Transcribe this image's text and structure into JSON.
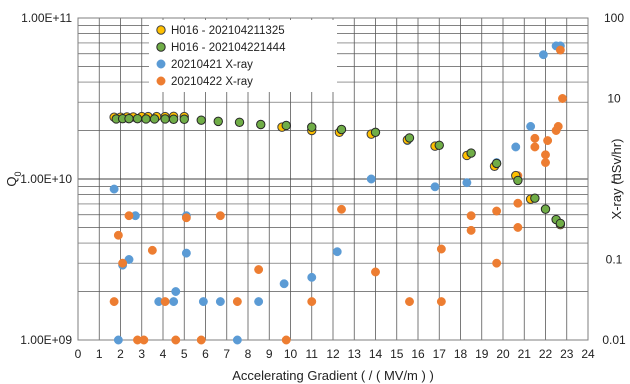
{
  "chart_data": {
    "type": "scatter",
    "xlabel": "Accelerating Gradient ( / ( MV/m ) )",
    "ylabel_left": "Q0",
    "ylabel_right": "X-ray (uSv/hr)",
    "x_range": [
      0,
      24
    ],
    "x_ticks": [
      "0",
      "1",
      "2",
      "3",
      "4",
      "5",
      "6",
      "7",
      "8",
      "9",
      "10",
      "11",
      "12",
      "13",
      "14",
      "15",
      "16",
      "17",
      "18",
      "19",
      "20",
      "21",
      "22",
      "23",
      "24"
    ],
    "y_left_range": [
      1000000000.0,
      100000000000.0
    ],
    "y_left_scale": "log",
    "y_left_ticks": [
      {
        "value": 1000000000.0,
        "label": "1.00E+09"
      },
      {
        "value": 10000000000.0,
        "label": "1.00E+10"
      },
      {
        "value": 100000000000.0,
        "label": "1.00E+11"
      }
    ],
    "y_right_range": [
      0.01,
      100
    ],
    "y_right_scale": "log",
    "y_right_ticks": [
      {
        "value": 0.01,
        "label": "0.01"
      },
      {
        "value": 0.1,
        "label": "0.1"
      },
      {
        "value": 1,
        "label": "1"
      },
      {
        "value": 10,
        "label": "10"
      },
      {
        "value": 100,
        "label": "100"
      }
    ],
    "grid": true,
    "legend_position": "top-left",
    "series": [
      {
        "name": "H016 - 202104211325",
        "axis": "left",
        "color": "#ffc000",
        "outline": "#404040",
        "points": [
          [
            1.7,
            24200000000.0
          ],
          [
            2.0,
            24200000000.0
          ],
          [
            2.3,
            24300000000.0
          ],
          [
            2.6,
            24300000000.0
          ],
          [
            3.0,
            24400000000.0
          ],
          [
            3.3,
            24400000000.0
          ],
          [
            3.7,
            24400000000.0
          ],
          [
            4.1,
            24400000000.0
          ],
          [
            4.5,
            24500000000.0
          ],
          [
            5.0,
            24400000000.0
          ],
          [
            9.6,
            21000000000.0
          ],
          [
            11.0,
            20000000000.0
          ],
          [
            12.3,
            19500000000.0
          ],
          [
            13.8,
            19000000000.0
          ],
          [
            15.5,
            17500000000.0
          ],
          [
            16.8,
            16000000000.0
          ],
          [
            18.3,
            14000000000.0
          ],
          [
            19.6,
            12000000000.0
          ],
          [
            20.6,
            10500000000.0
          ],
          [
            21.3,
            7500000000.0
          ],
          [
            22.7,
            5200000000.0
          ]
        ]
      },
      {
        "name": "H016 - 202104221444",
        "axis": "left",
        "color": "#70ad47",
        "outline": "#262626",
        "points": [
          [
            1.8,
            23600000000.0
          ],
          [
            2.1,
            23700000000.0
          ],
          [
            2.4,
            23700000000.0
          ],
          [
            2.8,
            23700000000.0
          ],
          [
            3.2,
            23600000000.0
          ],
          [
            3.6,
            23600000000.0
          ],
          [
            4.1,
            23600000000.0
          ],
          [
            4.5,
            23500000000.0
          ],
          [
            5.0,
            23500000000.0
          ],
          [
            5.8,
            23200000000.0
          ],
          [
            6.6,
            22800000000.0
          ],
          [
            7.6,
            22500000000.0
          ],
          [
            8.6,
            21800000000.0
          ],
          [
            9.8,
            21500000000.0
          ],
          [
            11.0,
            21000000000.0
          ],
          [
            12.4,
            20300000000.0
          ],
          [
            14.0,
            19500000000.0
          ],
          [
            15.6,
            18000000000.0
          ],
          [
            17.0,
            16200000000.0
          ],
          [
            18.5,
            14500000000.0
          ],
          [
            19.7,
            12500000000.0
          ],
          [
            20.7,
            9800000000.0
          ],
          [
            21.5,
            7600000000.0
          ],
          [
            22.0,
            6500000000.0
          ],
          [
            22.5,
            5600000000.0
          ],
          [
            22.7,
            5300000000.0
          ]
        ]
      },
      {
        "name": "20210421 X-ray",
        "axis": "right",
        "color": "#5b9bd5",
        "outline": "#5b9bd5",
        "points": [
          [
            1.7,
            0.75
          ],
          [
            1.9,
            0.01
          ],
          [
            2.1,
            0.085
          ],
          [
            2.4,
            0.1
          ],
          [
            2.7,
            0.35
          ],
          [
            3.8,
            0.03
          ],
          [
            4.5,
            0.03
          ],
          [
            4.6,
            0.04
          ],
          [
            5.1,
            0.35
          ],
          [
            5.1,
            0.12
          ],
          [
            5.9,
            0.03
          ],
          [
            6.7,
            0.03
          ],
          [
            7.5,
            0.01
          ],
          [
            8.5,
            0.03
          ],
          [
            9.7,
            0.05
          ],
          [
            11.0,
            0.06
          ],
          [
            12.2,
            0.125
          ],
          [
            13.8,
            1.0
          ],
          [
            15.5,
            3.0
          ],
          [
            16.8,
            0.8
          ],
          [
            18.3,
            0.9
          ],
          [
            19.7,
            1.6
          ],
          [
            20.6,
            2.5
          ],
          [
            21.3,
            4.5
          ],
          [
            21.9,
            35
          ],
          [
            22.5,
            45
          ],
          [
            22.7,
            45
          ]
        ]
      },
      {
        "name": "20210422 X-ray",
        "axis": "right",
        "color": "#ed7d31",
        "outline": "#ed7d31",
        "points": [
          [
            1.7,
            0.03
          ],
          [
            1.9,
            0.2
          ],
          [
            2.1,
            0.09
          ],
          [
            2.4,
            0.35
          ],
          [
            2.8,
            0.01
          ],
          [
            3.1,
            0.01
          ],
          [
            3.5,
            0.13
          ],
          [
            4.1,
            0.03
          ],
          [
            4.6,
            0.01
          ],
          [
            5.1,
            0.33
          ],
          [
            5.8,
            0.01
          ],
          [
            6.7,
            0.35
          ],
          [
            7.5,
            0.03
          ],
          [
            8.5,
            0.075
          ],
          [
            9.8,
            0.01
          ],
          [
            11.0,
            0.03
          ],
          [
            12.4,
            0.42
          ],
          [
            14.0,
            0.07
          ],
          [
            15.6,
            0.03
          ],
          [
            17.1,
            0.135
          ],
          [
            17.1,
            0.03
          ],
          [
            18.5,
            0.35
          ],
          [
            18.5,
            0.23
          ],
          [
            19.7,
            0.09
          ],
          [
            19.7,
            0.4
          ],
          [
            20.7,
            0.5
          ],
          [
            20.7,
            1.1
          ],
          [
            20.7,
            0.25
          ],
          [
            21.5,
            3.2
          ],
          [
            21.5,
            2.5
          ],
          [
            22.0,
            2.0
          ],
          [
            22.0,
            1.6
          ],
          [
            22.1,
            3.0
          ],
          [
            22.5,
            4.0
          ],
          [
            22.6,
            4.5
          ],
          [
            22.7,
            40
          ],
          [
            22.8,
            10
          ]
        ]
      }
    ]
  }
}
